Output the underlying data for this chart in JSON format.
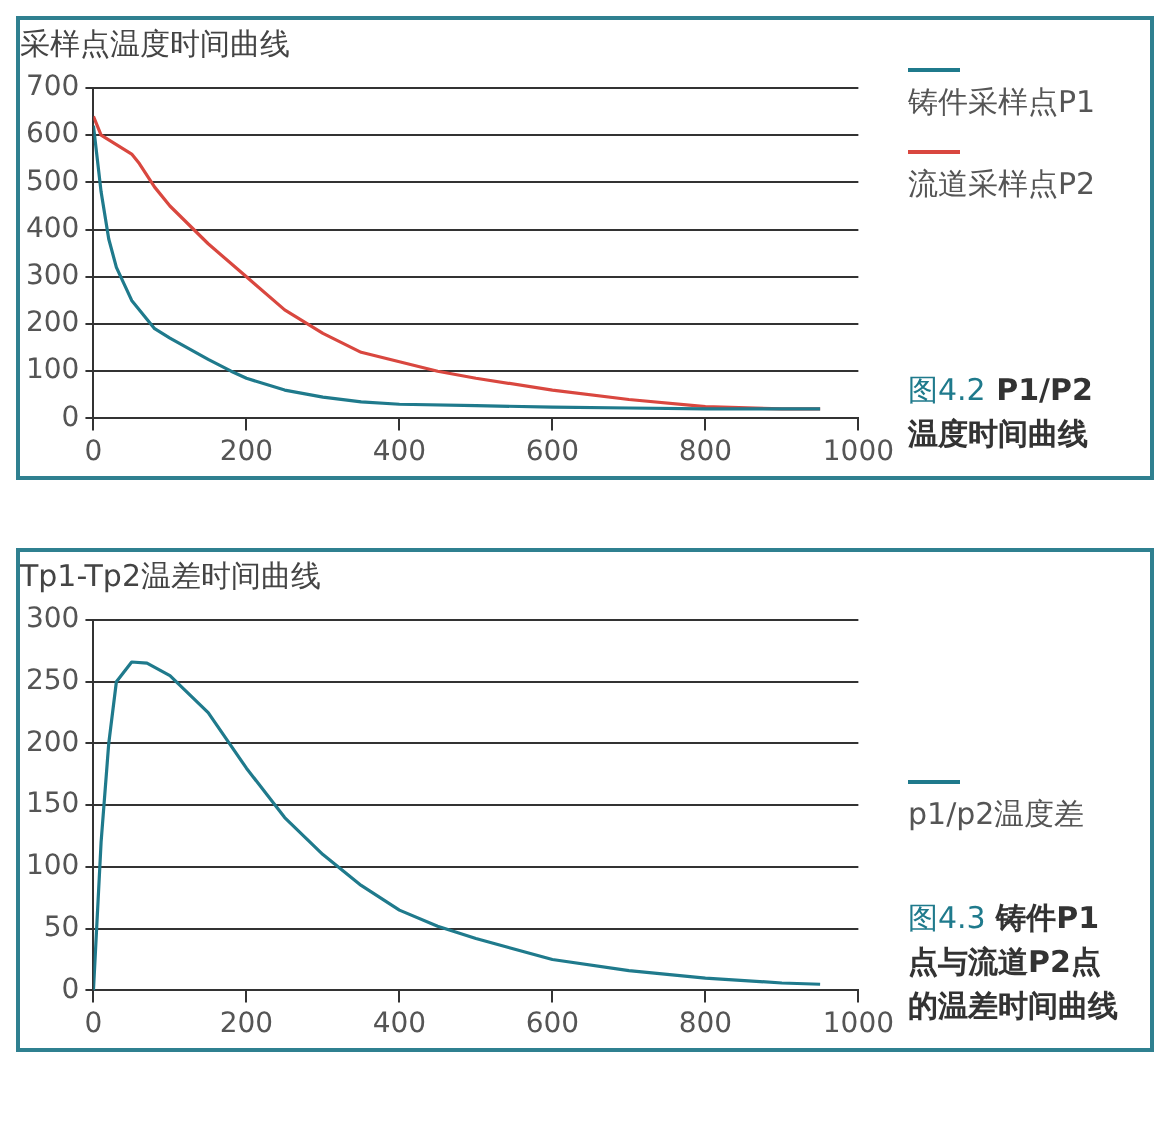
{
  "chart_data": [
    {
      "type": "line",
      "title": "采样点温度时间曲线",
      "xlim": [
        0,
        1000
      ],
      "xticks": [
        0,
        200,
        400,
        600,
        800,
        1000
      ],
      "ylim": [
        0,
        700
      ],
      "yticks": [
        0,
        100,
        200,
        300,
        400,
        500,
        600,
        700
      ],
      "grid": "y",
      "legend": "right",
      "annotations": [
        "图4.2 P1/P2 温度时间曲线"
      ],
      "series": [
        {
          "name": "铸件采样点P1",
          "color": "#1f7a8c",
          "x": [
            0,
            10,
            20,
            30,
            50,
            80,
            100,
            150,
            180,
            200,
            250,
            300,
            350,
            400,
            500,
            600,
            700,
            800,
            900,
            950
          ],
          "values": [
            620,
            480,
            380,
            320,
            250,
            190,
            170,
            125,
            100,
            85,
            60,
            45,
            35,
            30,
            27,
            24,
            22,
            20,
            20,
            20
          ]
        },
        {
          "name": "流道采样点P2",
          "color": "#d9473f",
          "x": [
            0,
            10,
            30,
            50,
            60,
            80,
            100,
            150,
            200,
            250,
            300,
            350,
            400,
            450,
            500,
            600,
            700,
            800,
            900,
            950
          ],
          "values": [
            640,
            600,
            580,
            560,
            540,
            490,
            450,
            370,
            300,
            230,
            180,
            140,
            120,
            100,
            85,
            60,
            40,
            25,
            20,
            20
          ]
        }
      ]
    },
    {
      "type": "line",
      "title": "Tp1-Tp2温差时间曲线",
      "xlim": [
        0,
        1000
      ],
      "xticks": [
        0,
        200,
        400,
        600,
        800,
        1000
      ],
      "ylim": [
        0,
        300
      ],
      "yticks": [
        0,
        50,
        100,
        150,
        200,
        250,
        300
      ],
      "grid": "y",
      "legend": "right",
      "annotations": [
        "图4.3 铸件P1点与流道P2点的温差时间曲线"
      ],
      "series": [
        {
          "name": "p1/p2温度差",
          "color": "#1f7a8c",
          "x": [
            0,
            10,
            20,
            30,
            50,
            70,
            100,
            150,
            200,
            250,
            300,
            350,
            400,
            450,
            500,
            600,
            700,
            800,
            900,
            950
          ],
          "values": [
            0,
            120,
            200,
            250,
            266,
            265,
            255,
            225,
            180,
            140,
            110,
            85,
            65,
            52,
            42,
            25,
            16,
            10,
            6,
            5
          ]
        }
      ]
    }
  ]
}
